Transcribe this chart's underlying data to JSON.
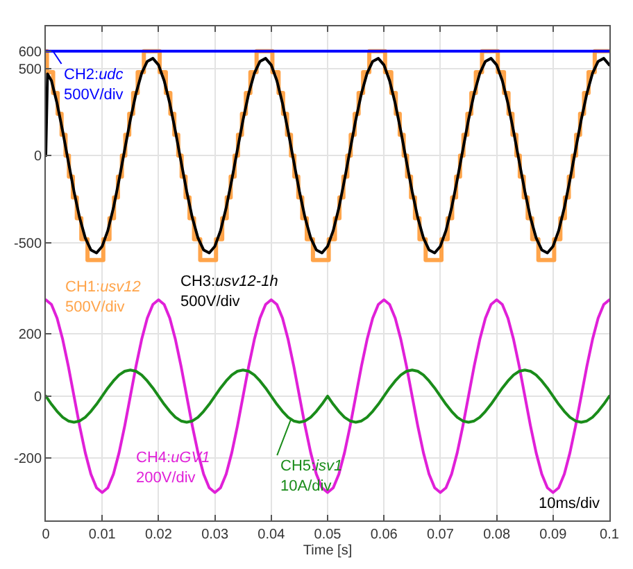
{
  "chart_data": [
    {
      "type": "line",
      "xlim": [
        0,
        0.1
      ],
      "xticks": [
        0,
        0.01,
        0.02,
        0.03,
        0.04,
        0.05,
        0.06,
        0.07,
        0.08,
        0.09,
        0.1
      ],
      "ylim": [
        -691,
        743
      ],
      "yticks": [
        -500,
        0,
        500,
        600
      ],
      "tick_labels": "y",
      "grid": true,
      "series": [
        {
          "name": "CH1:usv12\n500V/div",
          "type": "step",
          "color": "#ffa44a",
          "x": [
            0,
            0.0002,
            0.0013,
            0.0021,
            0.0028,
            0.0035,
            0.0041,
            0.0048,
            0.0055,
            0.0063,
            0.0074,
            0.0102,
            0.0113,
            0.0121,
            0.0128,
            0.0135,
            0.0141,
            0.0148,
            0.0155,
            0.0163,
            0.0174,
            0.0202,
            0.0213,
            0.0221,
            0.0228,
            0.0235,
            0.0241,
            0.0248,
            0.0255,
            0.0263,
            0.0274,
            0.0302,
            0.0313,
            0.0321,
            0.0328,
            0.0335,
            0.0341,
            0.0348,
            0.0355,
            0.0363,
            0.0374,
            0.0402,
            0.0413,
            0.0421,
            0.0428,
            0.0435,
            0.0441,
            0.0448,
            0.0455,
            0.0463,
            0.0474,
            0.0502,
            0.0513,
            0.0521,
            0.0528,
            0.0535,
            0.0541,
            0.0548,
            0.0555,
            0.0563,
            0.0574,
            0.0602,
            0.0613,
            0.0621,
            0.0628,
            0.0635,
            0.0641,
            0.0648,
            0.0655,
            0.0663,
            0.0674,
            0.0702,
            0.0713,
            0.0721,
            0.0728,
            0.0735,
            0.0741,
            0.0748,
            0.0755,
            0.0763,
            0.0774,
            0.0802,
            0.0813,
            0.0821,
            0.0828,
            0.0835,
            0.0841,
            0.0848,
            0.0855,
            0.0863,
            0.0874,
            0.0902,
            0.0913,
            0.0921,
            0.0928,
            0.0935,
            0.0941,
            0.0948,
            0.0955,
            0.0963,
            0.0974,
            0.1
          ],
          "values": [
            600,
            480,
            360,
            240,
            120,
            0,
            -120,
            -240,
            -360,
            -480,
            -600,
            -480,
            -360,
            -240,
            -120,
            0,
            120,
            240,
            360,
            480,
            600,
            480,
            360,
            240,
            120,
            0,
            -120,
            -240,
            -360,
            -480,
            -600,
            -480,
            -360,
            -240,
            -120,
            0,
            120,
            240,
            360,
            480,
            600,
            480,
            360,
            240,
            120,
            0,
            -120,
            -240,
            -360,
            -480,
            -600,
            -480,
            -360,
            -240,
            -120,
            0,
            120,
            240,
            360,
            480,
            600,
            480,
            360,
            240,
            120,
            0,
            -120,
            -240,
            -360,
            -480,
            -600,
            -480,
            -360,
            -240,
            -120,
            0,
            120,
            240,
            360,
            480,
            600,
            480,
            360,
            240,
            120,
            0,
            -120,
            -240,
            -360,
            -480,
            -600,
            -480,
            -360,
            -240,
            -120,
            0,
            120,
            240,
            360,
            480,
            600,
            600
          ]
        },
        {
          "name": "CH3:usv12-1h\n500V/div",
          "type": "line",
          "color": "#000000",
          "x": [
            0,
            0.0003,
            0.001,
            0.002,
            0.003,
            0.004,
            0.005,
            0.006,
            0.007,
            0.008,
            0.009,
            0.01,
            0.011,
            0.012,
            0.013,
            0.014,
            0.015,
            0.016,
            0.017,
            0.018,
            0.019,
            0.02,
            0.021,
            0.022,
            0.023,
            0.024,
            0.025,
            0.026,
            0.027,
            0.028,
            0.029,
            0.03,
            0.031,
            0.032,
            0.033,
            0.034,
            0.035,
            0.036,
            0.037,
            0.038,
            0.039,
            0.04,
            0.041,
            0.042,
            0.043,
            0.044,
            0.045,
            0.046,
            0.047,
            0.048,
            0.049,
            0.05,
            0.051,
            0.052,
            0.053,
            0.054,
            0.055,
            0.056,
            0.057,
            0.058,
            0.059,
            0.06,
            0.061,
            0.062,
            0.063,
            0.064,
            0.065,
            0.066,
            0.067,
            0.068,
            0.069,
            0.07,
            0.071,
            0.072,
            0.073,
            0.074,
            0.075,
            0.076,
            0.077,
            0.078,
            0.079,
            0.08,
            0.081,
            0.082,
            0.083,
            0.084,
            0.085,
            0.086,
            0.087,
            0.088,
            0.089,
            0.09,
            0.091,
            0.092,
            0.093,
            0.094,
            0.095,
            0.096,
            0.097,
            0.098,
            0.099,
            0.1
          ],
          "values": [
            0,
            470,
            431,
            300,
            139,
            -35,
            -206,
            -357,
            -473,
            -542,
            -559,
            -521,
            -431,
            -300,
            -139,
            35,
            206,
            357,
            473,
            542,
            559,
            521,
            431,
            300,
            139,
            -35,
            -206,
            -357,
            -473,
            -542,
            -559,
            -521,
            -431,
            -300,
            -139,
            35,
            206,
            357,
            473,
            542,
            559,
            521,
            431,
            300,
            139,
            -35,
            -206,
            -357,
            -473,
            -542,
            -559,
            -521,
            -431,
            -300,
            -139,
            35,
            206,
            357,
            473,
            542,
            559,
            521,
            431,
            300,
            139,
            -35,
            -206,
            -357,
            -473,
            -542,
            -559,
            -521,
            -431,
            -300,
            -139,
            35,
            206,
            357,
            473,
            542,
            559,
            521,
            431,
            300,
            139,
            -35,
            -206,
            -357,
            -473,
            -542,
            -559,
            -521,
            -431,
            -300,
            -139,
            35,
            206,
            357,
            473,
            542,
            559,
            521
          ]
        },
        {
          "name": "CH2:udc\n500V/div",
          "type": "line",
          "color": "#0000ff",
          "x": [
            0,
            0.1
          ],
          "values": [
            600,
            600
          ]
        }
      ]
    },
    {
      "type": "line",
      "xlabel": "Time [s]",
      "xlim": [
        0,
        0.1
      ],
      "xticks": [
        0,
        0.01,
        0.02,
        0.03,
        0.04,
        0.05,
        0.06,
        0.07,
        0.08,
        0.09,
        0.1
      ],
      "ylim": [
        -400,
        387
      ],
      "yticks": [
        -200,
        0,
        200
      ],
      "grid": true,
      "x": [
        0,
        0.001,
        0.002,
        0.003,
        0.004,
        0.005,
        0.006,
        0.007,
        0.008,
        0.009,
        0.01,
        0.011,
        0.012,
        0.013,
        0.014,
        0.015,
        0.016,
        0.017,
        0.018,
        0.019,
        0.02,
        0.021,
        0.022,
        0.023,
        0.024,
        0.025,
        0.026,
        0.027,
        0.028,
        0.029,
        0.03,
        0.031,
        0.032,
        0.033,
        0.034,
        0.035,
        0.036,
        0.037,
        0.038,
        0.039,
        0.04,
        0.041,
        0.042,
        0.043,
        0.044,
        0.045,
        0.046,
        0.047,
        0.048,
        0.049,
        0.05,
        0.051,
        0.052,
        0.053,
        0.054,
        0.055,
        0.056,
        0.057,
        0.058,
        0.059,
        0.06,
        0.061,
        0.062,
        0.063,
        0.064,
        0.065,
        0.066,
        0.067,
        0.068,
        0.069,
        0.07,
        0.071,
        0.072,
        0.073,
        0.074,
        0.075,
        0.076,
        0.077,
        0.078,
        0.079,
        0.08,
        0.081,
        0.082,
        0.083,
        0.084,
        0.085,
        0.086,
        0.087,
        0.088,
        0.089,
        0.09,
        0.091,
        0.092,
        0.093,
        0.094,
        0.095,
        0.096,
        0.097,
        0.098,
        0.099,
        0.1
      ],
      "annotations": [
        "10ms/div"
      ],
      "series": [
        {
          "name": "CH4:uGV1\n200V/div",
          "color": "#e020d8",
          "values": [
            310,
            295,
            251,
            182,
            96,
            0,
            -96,
            -182,
            -251,
            -295,
            -310,
            -295,
            -251,
            -182,
            -96,
            0,
            96,
            182,
            251,
            295,
            310,
            295,
            251,
            182,
            96,
            0,
            -96,
            -182,
            -251,
            -295,
            -310,
            -295,
            -251,
            -182,
            -96,
            0,
            96,
            182,
            251,
            295,
            310,
            295,
            251,
            182,
            96,
            0,
            -96,
            -182,
            -251,
            -295,
            -310,
            -295,
            -251,
            -182,
            -96,
            0,
            96,
            182,
            251,
            295,
            310,
            295,
            251,
            182,
            96,
            0,
            -96,
            -182,
            -251,
            -295,
            -310,
            -295,
            -251,
            -182,
            -96,
            0,
            96,
            182,
            251,
            295,
            310,
            295,
            251,
            182,
            96,
            0,
            -96,
            -182,
            -251,
            -295,
            -310,
            -295,
            -251,
            -182,
            -96,
            0,
            96,
            182,
            251,
            295,
            310
          ]
        },
        {
          "name": "CH5:isv1\n10A/div",
          "color": "#1a8c1a",
          "values": [
            0,
            -26,
            -49,
            -68,
            -80,
            -84,
            -80,
            -68,
            -49,
            -26,
            0,
            26,
            49,
            68,
            80,
            84,
            80,
            68,
            49,
            26,
            0,
            -26,
            -49,
            -68,
            -80,
            -84,
            -80,
            -68,
            -49,
            -26,
            0,
            26,
            49,
            68,
            80,
            84,
            80,
            68,
            49,
            26,
            0,
            -26,
            -49,
            -68,
            -80,
            -84,
            -80,
            -68,
            -49,
            -26,
            0,
            -26,
            -49,
            -68,
            -80,
            -84,
            -80,
            -68,
            -49,
            -26,
            0,
            26,
            49,
            68,
            80,
            84,
            80,
            68,
            49,
            26,
            0,
            -26,
            -49,
            -68,
            -80,
            -84,
            -80,
            -68,
            -49,
            -26,
            0,
            26,
            49,
            68,
            80,
            84,
            80,
            68,
            49,
            26,
            0,
            -26,
            -49,
            -68,
            -80,
            -84,
            -80,
            -68,
            -49,
            -26,
            0
          ]
        }
      ]
    }
  ]
}
